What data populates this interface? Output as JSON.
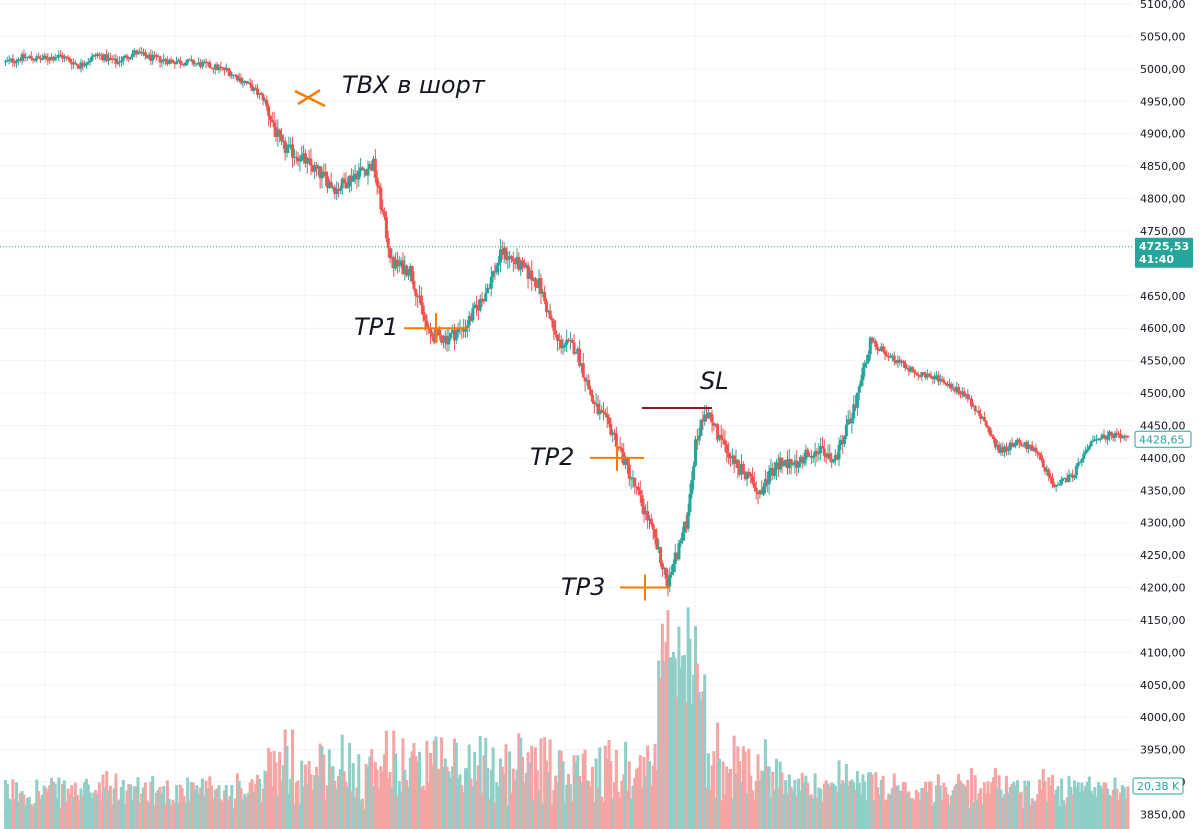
{
  "chart_data": {
    "type": "candlestick",
    "y_ticks": [
      "5100,00",
      "5050,00",
      "5000,00",
      "4950,00",
      "4900,00",
      "4850,00",
      "4800,00",
      "4750,00",
      "4650,00",
      "4600,00",
      "4550,00",
      "4500,00",
      "4450,00",
      "4400,00",
      "4350,00",
      "4300,00",
      "4250,00",
      "4200,00",
      "4150,00",
      "4100,00",
      "4050,00",
      "4000,00",
      "3950,00",
      "3900,00",
      "3850,00"
    ],
    "ylim": [
      3840,
      5104
    ],
    "current_price": {
      "value": 4725.53,
      "label": "4725,53",
      "countdown": "41:40"
    },
    "last_price": {
      "value": 4428.65,
      "label": "4428,65"
    },
    "volume_badge": "20,38 K",
    "colors": {
      "up": "#26a69a",
      "down": "#ef5350",
      "up_volume": "#8fcfc8",
      "down_volume": "#f5a5a3",
      "entry": "#f57c00",
      "tp": "#f57c00",
      "sl": "#8b1a2b"
    },
    "anchors": [
      [
        0,
        5010
      ],
      [
        10,
        5018
      ],
      [
        20,
        5015
      ],
      [
        30,
        5020
      ],
      [
        40,
        5005
      ],
      [
        50,
        5022
      ],
      [
        60,
        5010
      ],
      [
        70,
        5025
      ],
      [
        80,
        5016
      ],
      [
        90,
        5012
      ],
      [
        100,
        5010
      ],
      [
        110,
        5005
      ],
      [
        120,
        4998
      ],
      [
        130,
        4980
      ],
      [
        140,
        4955
      ],
      [
        150,
        4880
      ],
      [
        160,
        4865
      ],
      [
        170,
        4840
      ],
      [
        180,
        4815
      ],
      [
        190,
        4838
      ],
      [
        200,
        4852
      ],
      [
        210,
        4700
      ],
      [
        220,
        4690
      ],
      [
        230,
        4590
      ],
      [
        240,
        4585
      ],
      [
        250,
        4603
      ],
      [
        260,
        4650
      ],
      [
        270,
        4718
      ],
      [
        280,
        4695
      ],
      [
        290,
        4668
      ],
      [
        300,
        4578
      ],
      [
        310,
        4570
      ],
      [
        320,
        4480
      ],
      [
        330,
        4440
      ],
      [
        340,
        4370
      ],
      [
        350,
        4300
      ],
      [
        360,
        4205
      ],
      [
        365,
        4255
      ],
      [
        370,
        4300
      ],
      [
        375,
        4420
      ],
      [
        380,
        4475
      ],
      [
        390,
        4420
      ],
      [
        400,
        4380
      ],
      [
        410,
        4350
      ],
      [
        420,
        4390
      ],
      [
        430,
        4395
      ],
      [
        440,
        4415
      ],
      [
        450,
        4390
      ],
      [
        460,
        4465
      ],
      [
        470,
        4580
      ],
      [
        480,
        4560
      ],
      [
        490,
        4540
      ],
      [
        500,
        4525
      ],
      [
        510,
        4520
      ],
      [
        520,
        4500
      ],
      [
        530,
        4465
      ],
      [
        540,
        4410
      ],
      [
        550,
        4425
      ],
      [
        560,
        4412
      ],
      [
        570,
        4355
      ],
      [
        580,
        4372
      ],
      [
        590,
        4425
      ],
      [
        600,
        4435
      ],
      [
        610,
        4428
      ]
    ],
    "annotations": [
      {
        "label": "ТВХ в шорт",
        "price": 4955,
        "kind": "entry"
      },
      {
        "label": "TP1",
        "price": 4600,
        "kind": "tp"
      },
      {
        "label": "TP2",
        "price": 4400,
        "kind": "tp"
      },
      {
        "label": "TP3",
        "price": 4200,
        "kind": "tp"
      },
      {
        "label": "SL",
        "price": 4477,
        "kind": "sl"
      }
    ]
  }
}
